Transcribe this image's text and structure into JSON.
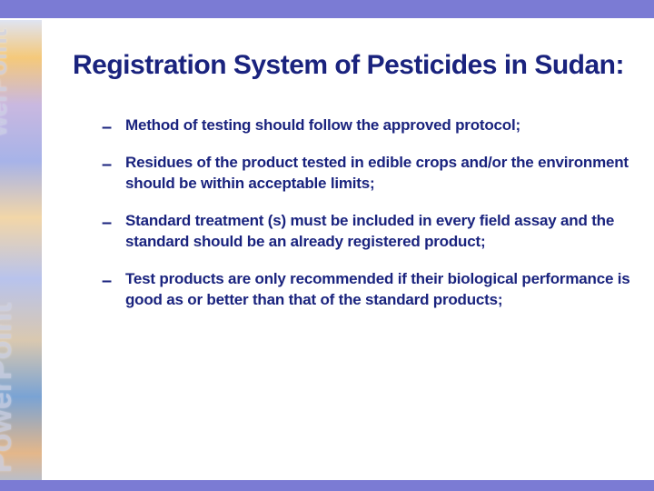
{
  "colors": {
    "band": "#7b7bd4",
    "text": "#1a237e",
    "background": "#ffffff"
  },
  "decoration": {
    "side_text_top": "werPoint",
    "side_text_bot": "PowerPoint"
  },
  "slide": {
    "title": "Registration System of Pesticides in Sudan:",
    "bullets": [
      "Method of testing should follow the approved protocol;",
      "Residues of the product tested in edible crops and/or the environment should be within acceptable limits;",
      "Standard treatment (s) must be included in every field assay and the standard should be an already registered product;",
      "Test products are only recommended if their biological performance is good as or better than that of the standard products;"
    ]
  }
}
